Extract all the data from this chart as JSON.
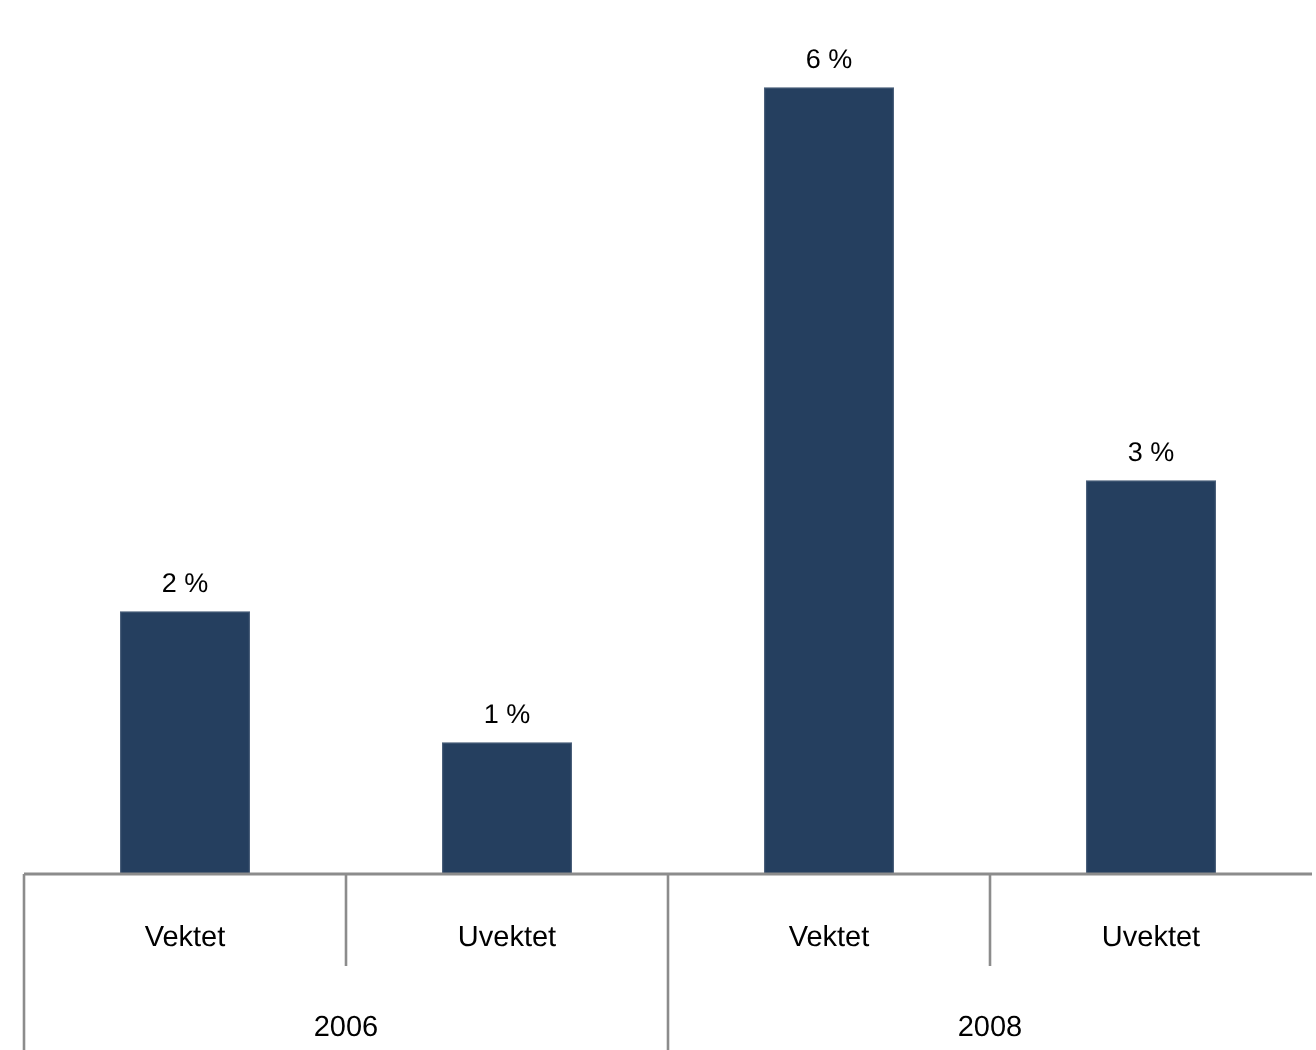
{
  "chart_data": {
    "type": "bar",
    "categories": [
      "Vektet",
      "Uvektet",
      "Vektet",
      "Uvektet"
    ],
    "values": [
      2,
      1,
      6,
      3
    ],
    "value_labels": [
      "2 %",
      "1 %",
      "6 %",
      "3 %"
    ],
    "color": "#253f5f",
    "annotations": [
      "2006",
      "2008"
    ]
  }
}
